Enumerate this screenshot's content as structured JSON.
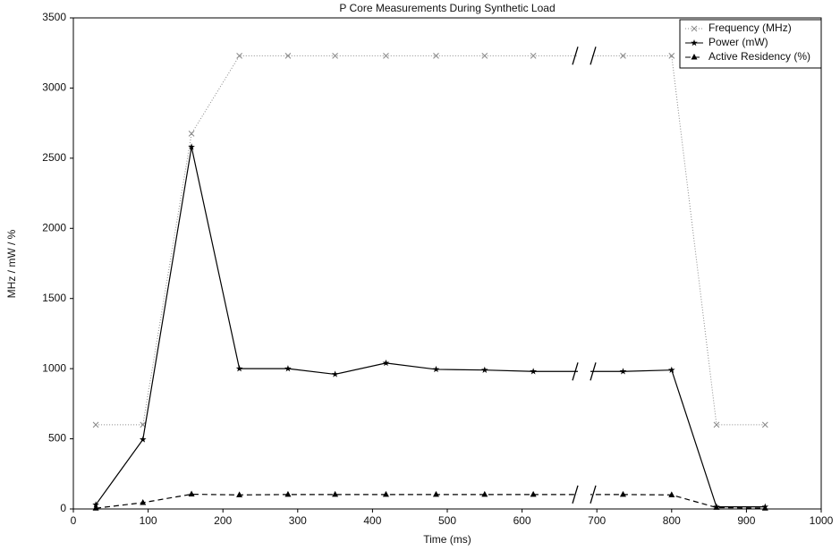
{
  "chart_data": {
    "type": "line",
    "title": "P Core Measurements During Synthetic Load",
    "x_label": "Time (ms)",
    "y_label": "MHz / mW / %",
    "x": [
      30,
      93,
      158,
      222,
      287,
      350,
      418,
      485,
      550,
      615,
      735,
      800,
      860,
      925
    ],
    "series": [
      {
        "name": "Frequency (MHz)",
        "color": "#888888",
        "dash": "1,2",
        "marker": "x",
        "values": [
          600,
          600,
          2675,
          3230,
          3230,
          3230,
          3230,
          3230,
          3230,
          3230,
          3230,
          3230,
          600,
          600
        ]
      },
      {
        "name": "Power (mW)",
        "color": "#000000",
        "dash": "none",
        "marker": "star",
        "values": [
          30,
          495,
          2580,
          1000,
          1000,
          960,
          1040,
          995,
          990,
          980,
          980,
          990,
          15,
          15
        ]
      },
      {
        "name": "Active Residency (%)",
        "color": "#000000",
        "dash": "6,4",
        "marker": "triangle",
        "values": [
          5,
          45,
          105,
          100,
          103,
          103,
          103,
          103,
          103,
          103,
          103,
          100,
          10,
          5
        ]
      }
    ],
    "xlim": [
      0,
      1000
    ],
    "xticks": [
      0,
      100,
      200,
      300,
      400,
      500,
      600,
      700,
      800,
      900,
      1000
    ],
    "ylim": [
      0,
      3500
    ],
    "yticks": [
      0,
      500,
      1000,
      1500,
      2000,
      2500,
      3000,
      3500
    ],
    "legend": "top-right"
  }
}
